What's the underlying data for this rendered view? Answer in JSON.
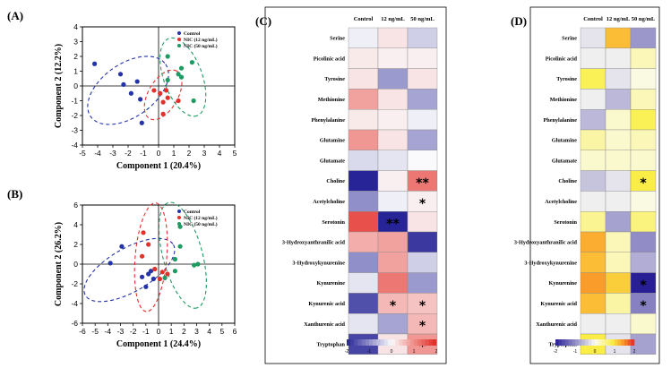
{
  "chart_data": [
    {
      "type": "scatter",
      "panel_label": "(A)",
      "xlabel": "Component 1  (20.4%)",
      "ylabel": "Component 2  (12.2%)",
      "xlim": [
        -5,
        5
      ],
      "ylim": [
        -4,
        4
      ],
      "xticks": [
        "-5",
        "-4",
        "-3",
        "-2",
        "-1",
        "0",
        "1",
        "2",
        "3",
        "4",
        "5"
      ],
      "yticks": [
        "-4",
        "-3",
        "-2",
        "-1",
        "0",
        "1",
        "2",
        "3",
        "4"
      ],
      "legend": [
        "Control",
        "NIC (12 ng/mL)",
        "NIC (50 ng/mL)"
      ],
      "legend_position": "top-right",
      "colors": [
        "#2433a8",
        "#e0312b",
        "#1f9a62"
      ],
      "series": [
        {
          "name": "Control",
          "points": [
            [
              -4.2,
              1.5
            ],
            [
              -2.5,
              0.8
            ],
            [
              -2.3,
              0.1
            ],
            [
              -1.4,
              0.3
            ],
            [
              -1.8,
              -0.5
            ],
            [
              -1.2,
              -0.9
            ],
            [
              -1.1,
              -2.5
            ]
          ]
        },
        {
          "name": "NIC (12 ng/mL)",
          "points": [
            [
              -0.3,
              -0.3
            ],
            [
              0.1,
              -0.5
            ],
            [
              0.5,
              -0.3
            ],
            [
              0.3,
              -1.1
            ],
            [
              0.6,
              -0.8
            ],
            [
              0.3,
              -1.9
            ],
            [
              1.3,
              -1.0
            ]
          ]
        },
        {
          "name": "NIC (50 ng/mL)",
          "points": [
            [
              0.6,
              2.0
            ],
            [
              1.3,
              0.8
            ],
            [
              1.5,
              1.2
            ],
            [
              1.5,
              0.6
            ],
            [
              2.2,
              1.6
            ],
            [
              0.6,
              0.4
            ],
            [
              2.3,
              -1.0
            ]
          ]
        }
      ],
      "ellipses": [
        {
          "series": "Control",
          "cx": -2.0,
          "cy": -0.3,
          "rx": 3.0,
          "ry": 1.8,
          "angle": 35
        },
        {
          "series": "NIC (12 ng/mL)",
          "cx": 0.3,
          "cy": -0.6,
          "rx": 1.8,
          "ry": 1.0,
          "angle": 60
        },
        {
          "series": "NIC (50 ng/mL)",
          "cx": 1.6,
          "cy": 0.6,
          "rx": 2.7,
          "ry": 1.3,
          "angle": -70
        }
      ]
    },
    {
      "type": "scatter",
      "panel_label": "(B)",
      "xlabel": "Component 1  (24.4%)",
      "ylabel": "Component 2  (26.2%)",
      "xlim": [
        -6,
        6
      ],
      "ylim": [
        -6,
        6
      ],
      "xticks": [
        "-6",
        "-5",
        "-4",
        "-3",
        "-2",
        "-1",
        "0",
        "1",
        "2",
        "3",
        "4",
        "5",
        "6"
      ],
      "yticks": [
        "-6",
        "-4",
        "-2",
        "0",
        "2",
        "4",
        "6"
      ],
      "legend": [
        "Control",
        "NIC (12 ng/mL)",
        "NIC (50 ng/mL)"
      ],
      "legend_position": "top-right",
      "colors": [
        "#2433a8",
        "#e0312b",
        "#1f9a62"
      ],
      "series": [
        {
          "name": "Control",
          "points": [
            [
              -2.9,
              1.8
            ],
            [
              -3.8,
              0.1
            ],
            [
              -1.3,
              -1.3
            ],
            [
              -0.8,
              -1.0
            ],
            [
              -0.4,
              -1.5
            ],
            [
              -1.0,
              -2.3
            ],
            [
              -0.6,
              -0.7
            ]
          ]
        },
        {
          "name": "NIC (12 ng/mL)",
          "points": [
            [
              -1.2,
              3.2
            ],
            [
              -0.8,
              2.0
            ],
            [
              -1.3,
              0.8
            ],
            [
              0.3,
              -0.8
            ],
            [
              0.1,
              -1.5
            ],
            [
              -0.3,
              -0.5
            ],
            [
              0.7,
              -1.0
            ]
          ]
        },
        {
          "name": "NIC (50 ng/mL)",
          "points": [
            [
              1.7,
              3.8
            ],
            [
              1.7,
              1.8
            ],
            [
              1.3,
              0.5
            ],
            [
              2.8,
              -0.1
            ],
            [
              3.1,
              0.0
            ],
            [
              1.3,
              -0.7
            ],
            [
              0.5,
              -1.4
            ]
          ]
        }
      ],
      "ellipses": [
        {
          "series": "Control",
          "cx": -2.3,
          "cy": -0.6,
          "rx": 4.0,
          "ry": 2.2,
          "angle": 30
        },
        {
          "series": "NIC (12 ng/mL)",
          "cx": -0.6,
          "cy": 0.7,
          "rx": 4.3,
          "ry": 1.6,
          "angle": -95
        },
        {
          "series": "NIC (50 ng/mL)",
          "cx": 1.9,
          "cy": 0.9,
          "rx": 4.3,
          "ry": 2.0,
          "angle": -75
        }
      ]
    },
    {
      "type": "heatmap",
      "panel_label": "(C)",
      "columns": [
        "Control",
        "12 ng/mL",
        "50 ng/mL"
      ],
      "rows": [
        "Serine",
        "Picolinic acid",
        "Tyrosine",
        "Methionine",
        "Phenylalanine",
        "Glutamine",
        "Glutamate",
        "Choline",
        "Acetylcholine",
        "Serotonin",
        "3-Hydroxyanthranilic acid",
        "3-Hydroxykynurenine",
        "Kynurenine",
        "Kynurenic acid",
        "Xanthurenic acid",
        "Tryptophan"
      ],
      "values": [
        [
          -0.1,
          0.2,
          -0.4
        ],
        [
          0.15,
          0.1,
          0.1
        ],
        [
          0.2,
          -0.9,
          0.2
        ],
        [
          0.8,
          0.2,
          -0.8
        ],
        [
          0.15,
          0.1,
          -0.1
        ],
        [
          0.9,
          0.2,
          -0.8
        ],
        [
          -0.3,
          -0.2,
          0.0
        ],
        [
          -2.0,
          0.1,
          1.2
        ],
        [
          -1.0,
          -0.1,
          0.1
        ],
        [
          1.6,
          -2.0,
          0.2
        ],
        [
          0.7,
          0.8,
          -1.8
        ],
        [
          -1.0,
          0.8,
          -0.4
        ],
        [
          -0.2,
          1.2,
          -0.9
        ],
        [
          -1.6,
          0.6,
          0.5
        ],
        [
          -0.2,
          -0.8,
          0.6
        ],
        [
          -1.7,
          0.2,
          0.9
        ]
      ],
      "stars": [
        [
          "",
          "",
          ""
        ],
        [
          "",
          "",
          ""
        ],
        [
          "",
          "",
          ""
        ],
        [
          "",
          "",
          ""
        ],
        [
          "",
          "",
          ""
        ],
        [
          "",
          "",
          ""
        ],
        [
          "",
          "",
          ""
        ],
        [
          "",
          "",
          "**"
        ],
        [
          "",
          "",
          "*"
        ],
        [
          "",
          "**",
          ""
        ],
        [
          "",
          "",
          ""
        ],
        [
          "",
          "",
          ""
        ],
        [
          "",
          "",
          ""
        ],
        [
          "",
          "*",
          "*"
        ],
        [
          "",
          "",
          "*"
        ],
        [
          "",
          "",
          "*"
        ]
      ],
      "colorbar_ticks": [
        "-2",
        "-1",
        "0",
        "1",
        "2"
      ],
      "range": [
        -2,
        2
      ],
      "palette": "blue-white-red"
    },
    {
      "type": "heatmap",
      "panel_label": "(D)",
      "columns": [
        "Control",
        "12 ng/mL",
        "50 ng/mL"
      ],
      "rows": [
        "Serine",
        "Picolinic acid",
        "Tyrosine",
        "Methionine",
        "Phenylalanine",
        "Glutamine",
        "Glutamate",
        "Choline",
        "Acetylcholine",
        "Serotonin",
        "3-Hydroxyanthranilic acid",
        "3-Hydroxykynurenine",
        "Kynurenine",
        "Kynurenic acid",
        "Xanthurenic acid",
        "Tryptophan"
      ],
      "values": [
        [
          -0.2,
          1.2,
          -0.9
        ],
        [
          -0.1,
          -0.1,
          0.3
        ],
        [
          0.8,
          -0.2,
          0.1
        ],
        [
          -0.1,
          -0.6,
          0.3
        ],
        [
          -0.6,
          0.2,
          0.8
        ],
        [
          0.4,
          0.2,
          0.3
        ],
        [
          0.2,
          0.2,
          0.2
        ],
        [
          -0.5,
          -0.2,
          0.9
        ],
        [
          -0.1,
          -0.1,
          0.1
        ],
        [
          0.5,
          -0.8,
          0.6
        ],
        [
          1.3,
          0.3,
          -1.0
        ],
        [
          1.2,
          0.3,
          -0.7
        ],
        [
          1.4,
          1.1,
          -2.0
        ],
        [
          1.2,
          0.4,
          -1.1
        ],
        [
          -0.1,
          -0.1,
          0.2
        ],
        [
          0.9,
          -0.2,
          -0.8
        ]
      ],
      "stars": [
        [
          "",
          "",
          ""
        ],
        [
          "",
          "",
          ""
        ],
        [
          "",
          "",
          ""
        ],
        [
          "",
          "",
          ""
        ],
        [
          "",
          "",
          ""
        ],
        [
          "",
          "",
          ""
        ],
        [
          "",
          "",
          ""
        ],
        [
          "",
          "",
          "*"
        ],
        [
          "",
          "",
          ""
        ],
        [
          "",
          "",
          ""
        ],
        [
          "",
          "",
          ""
        ],
        [
          "",
          "",
          ""
        ],
        [
          "",
          "",
          "*"
        ],
        [
          "",
          "",
          "*"
        ],
        [
          "",
          "",
          ""
        ],
        [
          "",
          "",
          ""
        ]
      ],
      "colorbar_ticks": [
        "-2",
        "-1",
        "0",
        "1",
        "2"
      ],
      "range": [
        -2,
        2
      ],
      "palette": "blue-white-yellow-red"
    }
  ]
}
